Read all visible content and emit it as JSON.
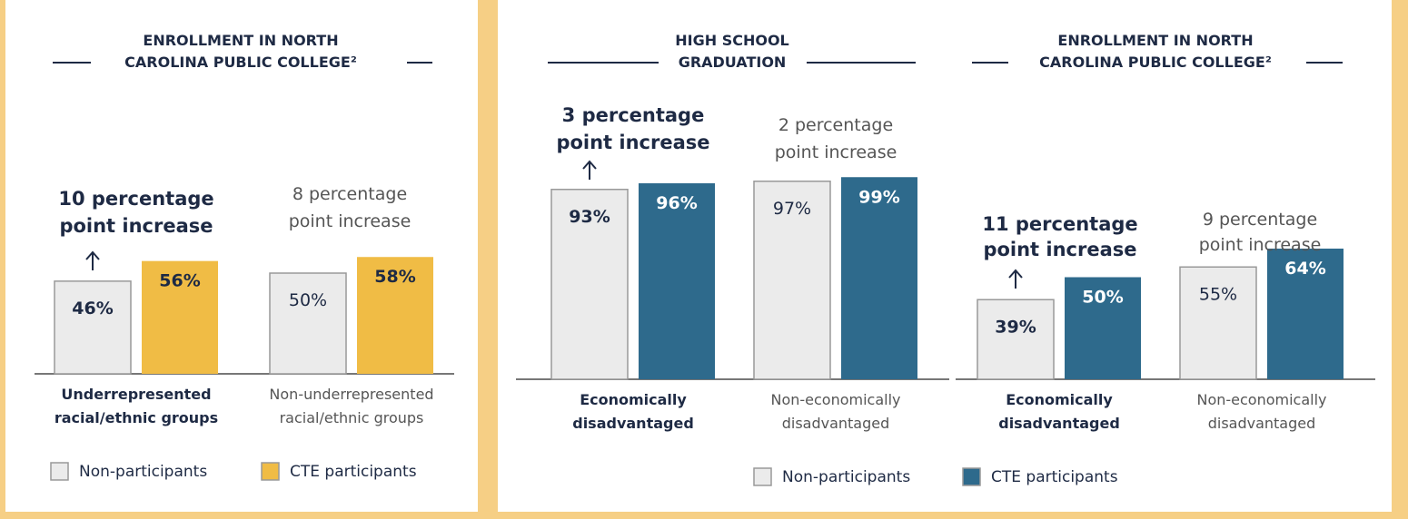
{
  "chart_data": [
    {
      "type": "bar",
      "title": "ENROLLMENT IN NORTH CAROLINA PUBLIC COLLEGE²",
      "title_lines": [
        "ENROLLMENT IN NORTH",
        "CAROLINA PUBLIC COLLEGE²"
      ],
      "categories": [
        "Underrepresented racial/ethnic groups",
        "Non-underrepresented racial/ethnic groups"
      ],
      "category_lines": [
        [
          "Underrepresented",
          "racial/ethnic groups"
        ],
        [
          "Non-underrepresented",
          "racial/ethnic groups"
        ]
      ],
      "series": [
        {
          "name": "Non-participants",
          "values": [
            46,
            50
          ],
          "labels": [
            "46%",
            "50%"
          ]
        },
        {
          "name": "CTE participants",
          "values": [
            56,
            58
          ],
          "labels": [
            "56%",
            "58%"
          ]
        }
      ],
      "annotations": [
        {
          "lines": [
            "10 percentage",
            "point increase"
          ],
          "bold": true
        },
        {
          "lines": [
            "8 percentage",
            "point increase"
          ],
          "bold": false
        }
      ],
      "ylim": [
        0,
        100
      ],
      "legend": "bottom",
      "colors": {
        "non": "#ebebeb",
        "cte": "#f0bc45"
      }
    },
    {
      "type": "bar",
      "title": "HIGH SCHOOL GRADUATION",
      "title_lines": [
        "HIGH SCHOOL",
        "GRADUATION"
      ],
      "categories": [
        "Economically disadvantaged",
        "Non-economically disadvantaged"
      ],
      "category_lines": [
        [
          "Economically",
          "disadvantaged"
        ],
        [
          "Non-economically",
          "disadvantaged"
        ]
      ],
      "series": [
        {
          "name": "Non-participants",
          "values": [
            93,
            97
          ],
          "labels": [
            "93%",
            "97%"
          ]
        },
        {
          "name": "CTE participants",
          "values": [
            96,
            99
          ],
          "labels": [
            "96%",
            "99%"
          ]
        }
      ],
      "annotations": [
        {
          "lines": [
            "3 percentage",
            "point increase"
          ],
          "bold": true
        },
        {
          "lines": [
            "2 percentage",
            "point increase"
          ],
          "bold": false
        }
      ],
      "ylim": [
        0,
        100
      ],
      "legend": "bottom",
      "colors": {
        "non": "#ebebeb",
        "cte": "#2e6a8c"
      }
    },
    {
      "type": "bar",
      "title": "ENROLLMENT IN NORTH CAROLINA PUBLIC COLLEGE²",
      "title_lines": [
        "ENROLLMENT IN NORTH",
        "CAROLINA PUBLIC COLLEGE²"
      ],
      "categories": [
        "Economically disadvantaged",
        "Non-economically disadvantaged"
      ],
      "category_lines": [
        [
          "Economically",
          "disadvantaged"
        ],
        [
          "Non-economically",
          "disadvantaged"
        ]
      ],
      "series": [
        {
          "name": "Non-participants",
          "values": [
            39,
            55
          ],
          "labels": [
            "39%",
            "55%"
          ]
        },
        {
          "name": "CTE participants",
          "values": [
            50,
            64
          ],
          "labels": [
            "50%",
            "64%"
          ]
        }
      ],
      "annotations": [
        {
          "lines": [
            "11 percentage",
            "point increase"
          ],
          "bold": true
        },
        {
          "lines": [
            "9 percentage",
            "point increase"
          ],
          "bold": false
        }
      ],
      "ylim": [
        0,
        100
      ],
      "legend": "bottom",
      "colors": {
        "non": "#ebebeb",
        "cte": "#2e6a8c"
      }
    }
  ],
  "legends": {
    "left": [
      {
        "label": "Non-participants",
        "color": "#ebebeb"
      },
      {
        "label": "CTE participants",
        "color": "#f0bc45"
      }
    ],
    "right": [
      {
        "label": "Non-participants",
        "color": "#ebebeb"
      },
      {
        "label": "CTE participants",
        "color": "#2e6a8c"
      }
    ]
  },
  "colors": {
    "background": "#f6cf85",
    "panel": "#ffffff",
    "text_dark": "#1e2a44",
    "text_muted": "#555555",
    "axis": "#777777",
    "bar_border": "#999999"
  }
}
